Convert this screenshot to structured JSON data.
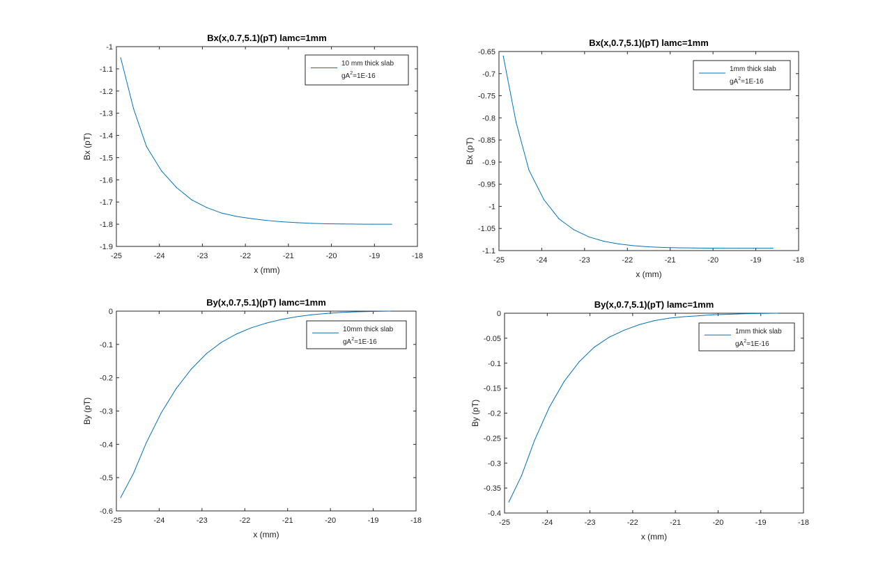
{
  "figure": {
    "background": "#ffffff",
    "series_color": "#0072BD",
    "axis_color": "#262626"
  },
  "chart_data": [
    {
      "type": "line",
      "title": "Bx(x,0.7,5.1)(pT) lamc=1mm",
      "xlabel": "x (mm)",
      "ylabel": "Bx (pT)",
      "xlim": [
        -25,
        -18
      ],
      "ylim": [
        -1.9,
        -1
      ],
      "xticks": [
        -25,
        -24,
        -23,
        -22,
        -21,
        -20,
        -19,
        -18
      ],
      "xtick_labels": [
        "-25",
        "-24",
        "-23",
        "-22",
        "-21",
        "-20",
        "-19",
        "-18"
      ],
      "yticks": [
        -1.9,
        -1.8,
        -1.7,
        -1.6,
        -1.5,
        -1.4,
        -1.3,
        -1.2,
        -1.1,
        -1
      ],
      "ytick_labels": [
        "-1.9",
        "-1.8",
        "-1.7",
        "-1.6",
        "-1.5",
        "-1.4",
        "-1.3",
        "-1.2",
        "-1.1",
        "-1"
      ],
      "grid": false,
      "legend": {
        "position": "top-right",
        "line1": "10 mm thick slab",
        "line2_pre": "gA",
        "line2_sup": "2",
        "line2_post": "=1E-16"
      },
      "series": [
        {
          "x": [
            -24.9,
            -24.6,
            -24.3,
            -23.95,
            -23.6,
            -23.25,
            -22.9,
            -22.55,
            -22.2,
            -21.85,
            -21.5,
            -21.15,
            -20.8,
            -20.45,
            -20.1,
            -19.75,
            -19.4,
            -19.05,
            -18.6
          ],
          "y": [
            -1.05,
            -1.28,
            -1.45,
            -1.56,
            -1.635,
            -1.69,
            -1.725,
            -1.75,
            -1.765,
            -1.775,
            -1.783,
            -1.789,
            -1.793,
            -1.796,
            -1.798,
            -1.799,
            -1.7995,
            -1.8,
            -1.8
          ]
        }
      ]
    },
    {
      "type": "line",
      "title": "Bx(x,0.7,5.1)(pT) lamc=1mm",
      "xlabel": "x (mm)",
      "ylabel": "Bx (pT)",
      "xlim": [
        -25,
        -18
      ],
      "ylim": [
        -1.1,
        -0.65
      ],
      "xticks": [
        -25,
        -24,
        -23,
        -22,
        -21,
        -20,
        -19,
        -18
      ],
      "xtick_labels": [
        "-25",
        "-24",
        "-23",
        "-22",
        "-21",
        "-20",
        "-19",
        "-18"
      ],
      "yticks": [
        -1.1,
        -1.05,
        -1,
        -0.95,
        -0.9,
        -0.85,
        -0.8,
        -0.75,
        -0.7,
        -0.65
      ],
      "ytick_labels": [
        "-1.1",
        "-1.05",
        "-1",
        "-0.95",
        "-0.9",
        "-0.85",
        "-0.8",
        "-0.75",
        "-0.7",
        "-0.65"
      ],
      "grid": false,
      "legend": {
        "position": "top-right",
        "line1": "1mm thick slab",
        "line2_pre": "gA",
        "line2_sup": "2",
        "line2_post": "=1E-16"
      },
      "series": [
        {
          "x": [
            -24.9,
            -24.6,
            -24.3,
            -23.95,
            -23.6,
            -23.25,
            -22.9,
            -22.55,
            -22.2,
            -21.85,
            -21.5,
            -21.15,
            -20.8,
            -20.45,
            -20.1,
            -19.75,
            -19.4,
            -19.05,
            -18.6
          ],
          "y": [
            -0.66,
            -0.81,
            -0.918,
            -0.985,
            -1.028,
            -1.053,
            -1.069,
            -1.079,
            -1.085,
            -1.089,
            -1.0915,
            -1.093,
            -1.0938,
            -1.0942,
            -1.0945,
            -1.0946,
            -1.0947,
            -1.0947,
            -1.0947
          ]
        }
      ]
    },
    {
      "type": "line",
      "title": "By(x,0.7,5.1)(pT) lamc=1mm",
      "xlabel": "x (mm)",
      "ylabel": "By (pT)",
      "xlim": [
        -25,
        -18
      ],
      "ylim": [
        -0.6,
        0
      ],
      "xticks": [
        -25,
        -24,
        -23,
        -22,
        -21,
        -20,
        -19,
        -18
      ],
      "xtick_labels": [
        "-25",
        "-24",
        "-23",
        "-22",
        "-21",
        "-20",
        "-19",
        "-18"
      ],
      "yticks": [
        -0.6,
        -0.5,
        -0.4,
        -0.3,
        -0.2,
        -0.1,
        0
      ],
      "ytick_labels": [
        "-0.6",
        "-0.5",
        "-0.4",
        "-0.3",
        "-0.2",
        "-0.1",
        "0"
      ],
      "grid": false,
      "legend": {
        "position": "top-right",
        "line1": "10mm thick slab",
        "line2_pre": "gA",
        "line2_sup": "2",
        "line2_post": "=1E-16"
      },
      "series": [
        {
          "x": [
            -24.9,
            -24.6,
            -24.3,
            -23.95,
            -23.6,
            -23.25,
            -22.9,
            -22.55,
            -22.2,
            -21.85,
            -21.5,
            -21.15,
            -20.8,
            -20.45,
            -20.1,
            -19.75,
            -19.4,
            -19.05,
            -18.6
          ],
          "y": [
            -0.56,
            -0.487,
            -0.395,
            -0.305,
            -0.232,
            -0.174,
            -0.128,
            -0.094,
            -0.069,
            -0.05,
            -0.036,
            -0.025,
            -0.017,
            -0.011,
            -0.007,
            -0.004,
            -0.002,
            -0.001,
            0
          ]
        }
      ]
    },
    {
      "type": "line",
      "title": "By(x,0.7,5.1)(pT) lamc=1mm",
      "xlabel": "x (mm)",
      "ylabel": "By (pT)",
      "xlim": [
        -25,
        -18
      ],
      "ylim": [
        -0.4,
        0
      ],
      "xticks": [
        -25,
        -24,
        -23,
        -22,
        -21,
        -20,
        -19,
        -18
      ],
      "xtick_labels": [
        "-25",
        "-24",
        "-23",
        "-22",
        "-21",
        "-20",
        "-19",
        "-18"
      ],
      "yticks": [
        -0.4,
        -0.35,
        -0.3,
        -0.25,
        -0.2,
        -0.15,
        -0.1,
        -0.05,
        0
      ],
      "ytick_labels": [
        "-0.4",
        "-0.35",
        "-0.3",
        "-0.25",
        "-0.2",
        "-0.15",
        "-0.1",
        "-0.05",
        "0"
      ],
      "grid": false,
      "legend": {
        "position": "top-right",
        "line1": "1mm thick slab",
        "line2_pre": "gA",
        "line2_sup": "2",
        "line2_post": "=1E-16"
      },
      "series": [
        {
          "x": [
            -24.9,
            -24.6,
            -24.3,
            -23.95,
            -23.6,
            -23.25,
            -22.9,
            -22.55,
            -22.2,
            -21.85,
            -21.5,
            -21.15,
            -20.8,
            -20.45,
            -20.1,
            -19.75,
            -19.4,
            -19.05,
            -18.6
          ],
          "y": [
            -0.378,
            -0.325,
            -0.255,
            -0.188,
            -0.136,
            -0.097,
            -0.068,
            -0.048,
            -0.034,
            -0.023,
            -0.015,
            -0.01,
            -0.007,
            -0.005,
            -0.003,
            -0.002,
            -0.001,
            -0.0005,
            0
          ]
        }
      ]
    }
  ]
}
